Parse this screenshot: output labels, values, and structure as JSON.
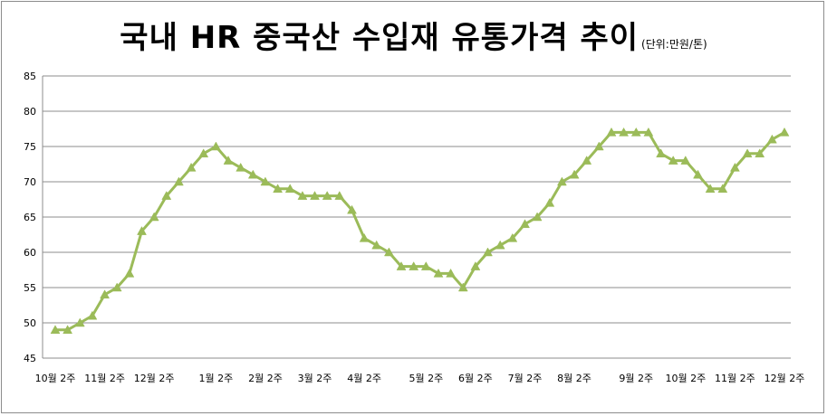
{
  "title": "국내 HR 중국산 수입재 유통가격 추이",
  "unit": "(단위:만원/톤)",
  "chart_data": {
    "type": "line",
    "title": "국내 HR 중국산 수입재 유통가격 추이",
    "subtitle": "(단위:만원/톤)",
    "xlabel": "",
    "ylabel": "",
    "ylim": [
      45,
      85
    ],
    "yticks": [
      45,
      50,
      55,
      60,
      65,
      70,
      75,
      80,
      85
    ],
    "grid": true,
    "legend": "none",
    "x_tick_labels": [
      {
        "index": 0,
        "label": "10월 2주"
      },
      {
        "index": 4,
        "label": "11월 2주"
      },
      {
        "index": 8,
        "label": "12월 2주"
      },
      {
        "index": 13,
        "label": "1월 2주"
      },
      {
        "index": 17,
        "label": "2월 2주"
      },
      {
        "index": 21,
        "label": "3월 2주"
      },
      {
        "index": 25,
        "label": "4월 2주"
      },
      {
        "index": 30,
        "label": "5월 2주"
      },
      {
        "index": 34,
        "label": "6월 2주"
      },
      {
        "index": 38,
        "label": "7월 2주"
      },
      {
        "index": 42,
        "label": "8월 2주"
      },
      {
        "index": 47,
        "label": "9월 2주"
      },
      {
        "index": 51,
        "label": "10월 2주"
      },
      {
        "index": 55,
        "label": "11월 2주"
      },
      {
        "index": 59,
        "label": "12월 2주"
      }
    ],
    "series": [
      {
        "color": "#9bbb59",
        "marker": "triangle",
        "values": [
          49,
          49,
          50,
          51,
          54,
          55,
          57,
          63,
          65,
          68,
          70,
          72,
          74,
          75,
          73,
          72,
          71,
          70,
          69,
          69,
          68,
          68,
          68,
          68,
          66,
          62,
          61,
          60,
          58,
          58,
          58,
          57,
          57,
          55,
          58,
          60,
          61,
          62,
          64,
          65,
          67,
          70,
          71,
          73,
          75,
          77,
          77,
          77,
          77,
          74,
          73,
          73,
          71,
          69,
          69,
          72,
          74,
          74,
          76,
          77
        ]
      }
    ]
  }
}
